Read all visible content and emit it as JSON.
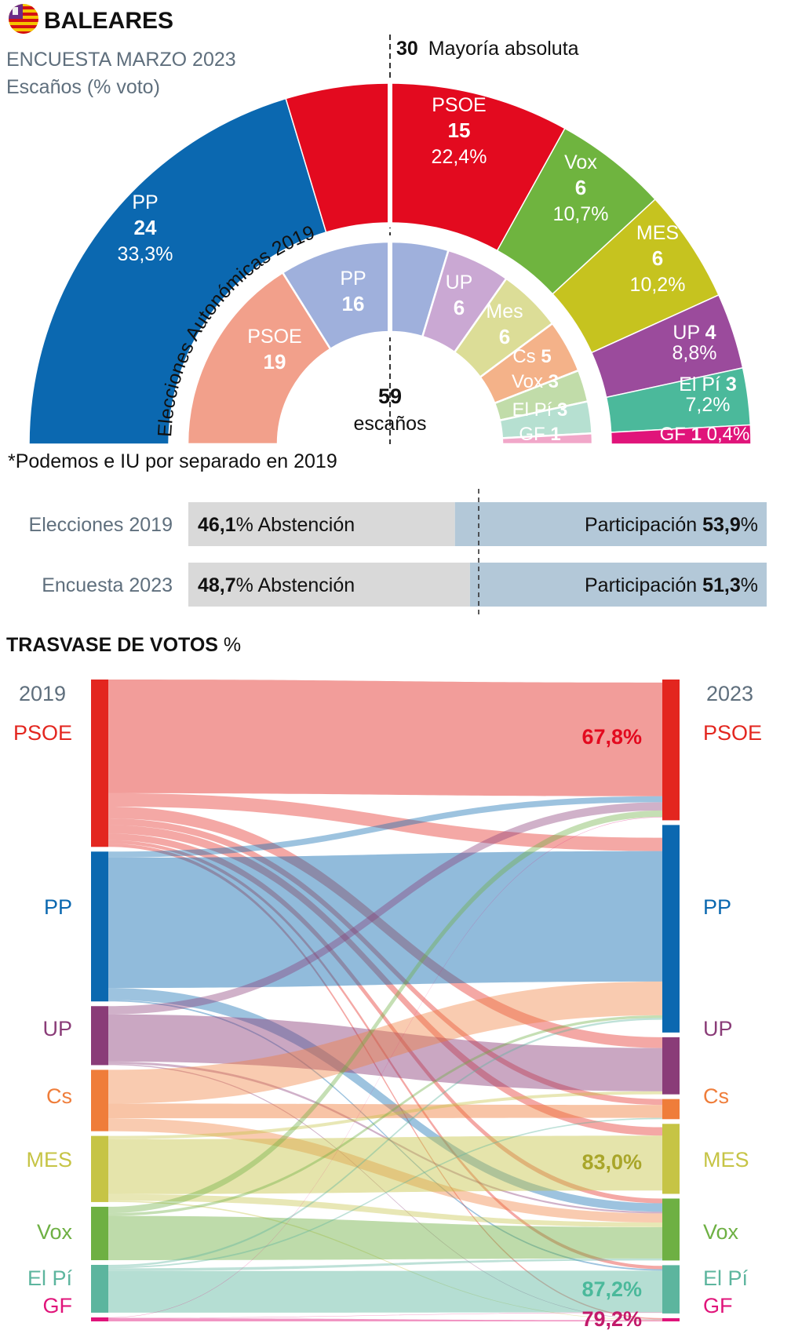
{
  "header": {
    "title": "BALEARES",
    "subtitle": "ENCUESTA MARZO 2023",
    "subtitle2": "Escaños (% voto)",
    "majority_number": "30",
    "majority_text": "Mayoría absoluta",
    "inner_ring_label": "Elecciones Autonómicas 2019",
    "total_number": "59",
    "total_text": "escaños",
    "footnote": "*Podemos e IU por separado en 2019",
    "flag_icon": "balearic-flag-icon"
  },
  "chart_data": [
    {
      "type": "pie",
      "variant": "hemicycle-outer",
      "title": "ENCUESTA MARZO 2023",
      "subtitle": "Escaños (% voto)",
      "total_seats": 59,
      "majority": 30,
      "series": [
        {
          "party": "PP",
          "seats": 24,
          "seats_label": "24",
          "vote_label": "33,3%",
          "color": "#0b68b0"
        },
        {
          "party": "PSOE",
          "seats": 15,
          "seats_label": "15",
          "vote_label": "22,4%",
          "color": "#e30a1f"
        },
        {
          "party": "Vox",
          "seats": 6,
          "seats_label": "6",
          "vote_label": "10,7%",
          "color": "#6fb43f"
        },
        {
          "party": "MES",
          "seats": 6,
          "seats_label": "6",
          "vote_label": "10,2%",
          "color": "#c6c31f"
        },
        {
          "party": "UP",
          "seats": 4,
          "seats_label": "4",
          "vote_label": "8,8%",
          "color": "#9b4b9c"
        },
        {
          "party": "El Pí",
          "seats": 3,
          "seats_label": "3",
          "vote_label": "7,2%",
          "color": "#4bb99b"
        },
        {
          "party": "GF",
          "seats": 1,
          "seats_label": "1",
          "vote_label": "0,4%",
          "color": "#e0147a"
        }
      ]
    },
    {
      "type": "pie",
      "variant": "hemicycle-inner",
      "title": "Elecciones Autonómicas 2019",
      "total_seats": 59,
      "series": [
        {
          "party": "PSOE",
          "seats": 19,
          "seats_label": "19",
          "color": "#f2a08b"
        },
        {
          "party": "PP",
          "seats": 16,
          "seats_label": "16",
          "color": "#9fb0dc"
        },
        {
          "party": "UP",
          "seats": 6,
          "seats_label": "6",
          "color": "#caa8d3"
        },
        {
          "party": "Mes",
          "seats": 6,
          "seats_label": "6",
          "color": "#dcdd97"
        },
        {
          "party": "Cs",
          "seats": 5,
          "seats_label": "5",
          "color": "#f4b289"
        },
        {
          "party": "Vox",
          "seats": 3,
          "seats_label": "3",
          "color": "#c1dca9"
        },
        {
          "party": "El Pí",
          "seats": 3,
          "seats_label": "3",
          "color": "#b6e0d1"
        },
        {
          "party": "GF",
          "seats": 1,
          "seats_label": "1",
          "color": "#f1a7c9"
        }
      ]
    },
    {
      "type": "bar",
      "variant": "stacked-100",
      "categories": [
        "Elecciones 2019",
        "Encuesta 2023"
      ],
      "series": [
        {
          "name": "Abstención",
          "values": [
            46.1,
            48.7
          ],
          "labels": [
            "46,1",
            "48,7"
          ],
          "color": "#d9d9d9"
        },
        {
          "name": "Participación",
          "values": [
            53.9,
            51.3
          ],
          "labels": [
            "53,9",
            "51,3"
          ],
          "color": "#b3c8d8"
        }
      ]
    },
    {
      "type": "sankey",
      "title": "TRASVASE DE VOTOS",
      "title_unit": "%",
      "left_label": "2019",
      "right_label": "2023",
      "left_nodes": [
        {
          "name": "PSOE",
          "color": "#e3261f",
          "share": 0.21
        },
        {
          "name": "PP",
          "color": "#0b68b0",
          "share": 0.188
        },
        {
          "name": "UP",
          "color": "#8a3c78",
          "share": 0.074
        },
        {
          "name": "Cs",
          "color": "#ef7d3a",
          "share": 0.077
        },
        {
          "name": "MES",
          "color": "#c6c445",
          "share": 0.083
        },
        {
          "name": "Vox",
          "color": "#6eb043",
          "share": 0.067
        },
        {
          "name": "El Pí",
          "color": "#5cb59e",
          "share": 0.06
        },
        {
          "name": "GF",
          "color": "#e0147a",
          "share": 0.005
        }
      ],
      "right_nodes": [
        {
          "name": "PSOE",
          "color": "#e3261f",
          "share": 0.175
        },
        {
          "name": "PP",
          "color": "#0b68b0",
          "share": 0.258
        },
        {
          "name": "UP",
          "color": "#8a3c78",
          "share": 0.071
        },
        {
          "name": "Cs",
          "color": "#ef7d3a",
          "share": 0.025
        },
        {
          "name": "MES",
          "color": "#c6c445",
          "share": 0.087
        },
        {
          "name": "Vox",
          "color": "#6eb043",
          "share": 0.077
        },
        {
          "name": "El Pí",
          "color": "#5cb59e",
          "share": 0.06
        },
        {
          "name": "GF",
          "color": "#e0147a",
          "share": 0.004
        }
      ],
      "flows": [
        {
          "from": "PSOE",
          "to": "PSOE",
          "value": 67.8,
          "label": "67,8%"
        },
        {
          "from": "PSOE",
          "to": "PP",
          "value": 8
        },
        {
          "from": "PSOE",
          "to": "UP",
          "value": 7
        },
        {
          "from": "PSOE",
          "to": "Cs",
          "value": 4
        },
        {
          "from": "PSOE",
          "to": "MES",
          "value": 5
        },
        {
          "from": "PSOE",
          "to": "Vox",
          "value": 4
        },
        {
          "from": "PSOE",
          "to": "El Pí",
          "value": 2
        },
        {
          "from": "PSOE",
          "to": "GF",
          "value": 2
        },
        {
          "from": "PP",
          "to": "PSOE",
          "value": 4
        },
        {
          "from": "PP",
          "to": "PP",
          "value": 87
        },
        {
          "from": "PP",
          "to": "Vox",
          "value": 8
        },
        {
          "from": "PP",
          "to": "El Pí",
          "value": 1
        },
        {
          "from": "UP",
          "to": "PSOE",
          "value": 14
        },
        {
          "from": "UP",
          "to": "UP",
          "value": 80
        },
        {
          "from": "UP",
          "to": "Vox",
          "value": 4
        },
        {
          "from": "UP",
          "to": "GF",
          "value": 2
        },
        {
          "from": "Cs",
          "to": "PP",
          "value": 55
        },
        {
          "from": "Cs",
          "to": "Cs",
          "value": 24
        },
        {
          "from": "Cs",
          "to": "Vox",
          "value": 21
        },
        {
          "from": "MES",
          "to": "UP",
          "value": 5
        },
        {
          "from": "MES",
          "to": "MES",
          "value": 83.0,
          "label": "83,0%"
        },
        {
          "from": "MES",
          "to": "Vox",
          "value": 10
        },
        {
          "from": "MES",
          "to": "GF",
          "value": 2
        },
        {
          "from": "Vox",
          "to": "PSOE",
          "value": 12
        },
        {
          "from": "Vox",
          "to": "PP",
          "value": 5
        },
        {
          "from": "Vox",
          "to": "Vox",
          "value": 83
        },
        {
          "from": "El Pí",
          "to": "PP",
          "value": 4
        },
        {
          "from": "El Pí",
          "to": "Cs",
          "value": 3
        },
        {
          "from": "El Pí",
          "to": "Vox",
          "value": 5.8
        },
        {
          "from": "El Pí",
          "to": "El Pí",
          "value": 87.2,
          "label": "87,2%"
        },
        {
          "from": "GF",
          "to": "PSOE",
          "value": 10
        },
        {
          "from": "GF",
          "to": "El Pí",
          "value": 10.8
        },
        {
          "from": "GF",
          "to": "GF",
          "value": 79.2,
          "label": "79,2%"
        }
      ]
    }
  ],
  "participation": {
    "rows": [
      {
        "label": "Elecciones 2019",
        "abst_value": "46,1",
        "abst_text": "% Abstención",
        "part_text": "Participación",
        "part_value": "53,9",
        "pct": "%"
      },
      {
        "label": "Encuesta 2023",
        "abst_value": "48,7",
        "abst_text": "% Abstención",
        "part_text": "Participación",
        "part_value": "51,3",
        "pct": "%"
      }
    ]
  },
  "flow": {
    "title": "TRASVASE DE VOTOS",
    "title_unit": "%"
  }
}
